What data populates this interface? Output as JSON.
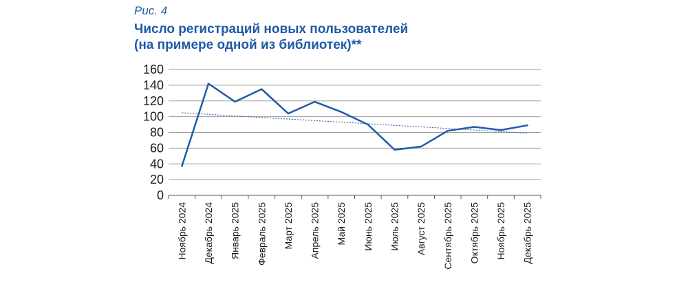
{
  "figure": {
    "label": "Рис. 4",
    "title_line1": "Число регистраций новых пользователей",
    "title_line2": "(на примере одной из библиотек)**"
  },
  "colors": {
    "line": "#1f5aa6",
    "trend": "#1f5aa6",
    "grid": "#9a9a9a",
    "text": "#1a1a1a"
  },
  "chart_data": {
    "type": "line",
    "title": "Число регистраций новых пользователей (на примере одной из библиотек)**",
    "xlabel": "",
    "ylabel": "",
    "categories": [
      "Ноябрь 2024",
      "Декабрь 2024",
      "Январь 2025",
      "Февраль 2025",
      "Март 2025",
      "Апрель 2025",
      "Май 2025",
      "Июнь 2025",
      "Июль 2025",
      "Август 2025",
      "Сентябрь 2025",
      "Октябрь 2025",
      "Ноябрь 2025",
      "Декабрь 2025"
    ],
    "series": [
      {
        "values": [
          37,
          142,
          119,
          135,
          104,
          119,
          106,
          90,
          58,
          62,
          82,
          87,
          83,
          89
        ]
      }
    ],
    "trendline": {
      "type": "linear",
      "style": "dotted",
      "start": 105,
      "end": 79
    },
    "ylim": [
      0,
      160
    ],
    "yticks": [
      0,
      20,
      40,
      60,
      80,
      100,
      120,
      140,
      160
    ],
    "grid": true,
    "legend": "none"
  }
}
